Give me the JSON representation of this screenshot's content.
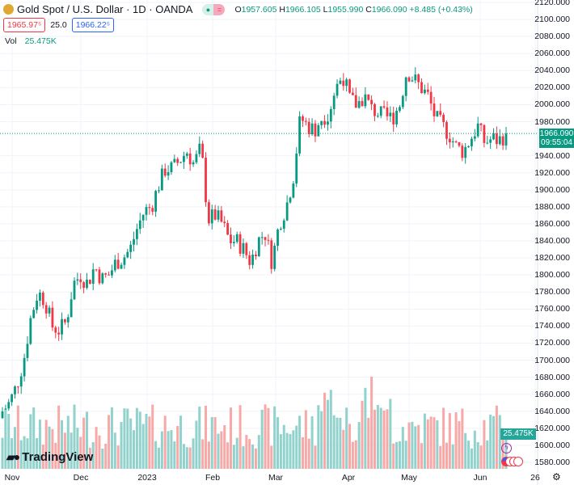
{
  "header": {
    "title": "Gold Spot / U.S. Dollar · 1D · OANDA",
    "open_label": "O",
    "open": "1957.605",
    "high_label": "H",
    "high": "1966.105",
    "low_label": "L",
    "low": "1955.990",
    "close_label": "C",
    "close": "1966.090",
    "change": "+8.485 (+0.43%)",
    "sell_price": "1965.97⁵",
    "spread": "25.0",
    "buy_price": "1966.22⁵",
    "status_dot": "●",
    "status_eq": "="
  },
  "volume": {
    "label": "Vol",
    "value": "25.475K"
  },
  "price_tag": {
    "price": "1966.090",
    "countdown": "09:55:04"
  },
  "volume_tag": "25.475K",
  "brand": "TradingView",
  "colors": {
    "up": "#089981",
    "down": "#f23645",
    "vol_up": "#92d2cc",
    "vol_down": "#f7a9a7"
  },
  "chart_data": {
    "type": "candlestick",
    "yaxis_ticks": [
      "2120.000",
      "2100.000",
      "2080.000",
      "2060.000",
      "2040.000",
      "2020.000",
      "2000.000",
      "1980.000",
      "1940.000",
      "1920.000",
      "1900.000",
      "1880.000",
      "1860.000",
      "1840.000",
      "1820.000",
      "1800.000",
      "1780.000",
      "1760.000",
      "1740.000",
      "1720.000",
      "1700.000",
      "1680.000",
      "1660.000",
      "1640.000",
      "1620.000",
      "1600.000",
      "1580.000"
    ],
    "ylim": [
      1580,
      2120
    ],
    "xaxis_ticks": [
      "Nov",
      "Dec",
      "2023",
      "Feb",
      "Mar",
      "Apr",
      "May",
      "Jun",
      "26"
    ],
    "anchor_closes": [
      1640,
      1650,
      1670,
      1700,
      1750,
      1780,
      1770,
      1740,
      1735,
      1745,
      1790,
      1800,
      1790,
      1810,
      1795,
      1800,
      1815,
      1820,
      1830,
      1855,
      1875,
      1880,
      1905,
      1925,
      1925,
      1935,
      1945,
      1930,
      1950,
      1865,
      1870,
      1860,
      1840,
      1840,
      1830,
      1815,
      1840,
      1850,
      1815,
      1860,
      1880,
      1915,
      1985,
      1975,
      1970,
      1985,
      1990,
      2020,
      2035,
      2005,
      2000,
      2010,
      1995,
      1990,
      1985,
      1985,
      2000,
      2040,
      2030,
      2020,
      2010,
      1985,
      1975,
      1965,
      1950,
      1945,
      1960,
      1975,
      1955,
      1960,
      1958,
      1966.09
    ],
    "last_close": 1966.09
  }
}
